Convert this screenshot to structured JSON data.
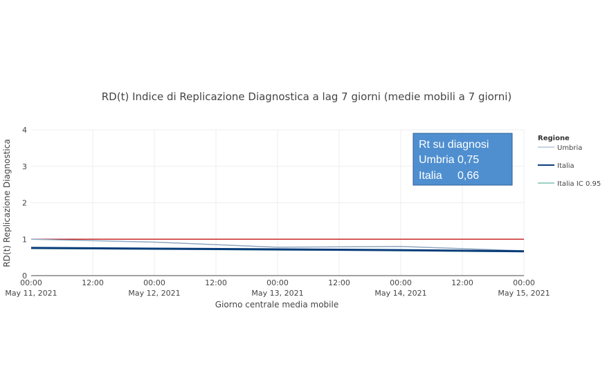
{
  "chart_data": {
    "type": "line",
    "title": "RD(t) Indice di Replicazione Diagnostica a lag 7 giorni (medie mobili a 7 giorni)",
    "xlabel": "Giorno centrale media mobile",
    "ylabel": "RD(t) Replicazione Diagnostica",
    "ylim": [
      0,
      4
    ],
    "yticks": [
      "0",
      "1",
      "2",
      "3",
      "4"
    ],
    "x_range": [
      "2021-05-11T00:00",
      "2021-05-15T00:00"
    ],
    "xticks": [
      {
        "t": "2021-05-11T00:00",
        "line1": "00:00",
        "line2": "May 11, 2021"
      },
      {
        "t": "2021-05-11T12:00",
        "line1": "12:00",
        "line2": ""
      },
      {
        "t": "2021-05-12T00:00",
        "line1": "00:00",
        "line2": "May 12, 2021"
      },
      {
        "t": "2021-05-12T12:00",
        "line1": "12:00",
        "line2": ""
      },
      {
        "t": "2021-05-13T00:00",
        "line1": "00:00",
        "line2": "May 13, 2021"
      },
      {
        "t": "2021-05-13T12:00",
        "line1": "12:00",
        "line2": ""
      },
      {
        "t": "2021-05-14T00:00",
        "line1": "00:00",
        "line2": "May 14, 2021"
      },
      {
        "t": "2021-05-14T12:00",
        "line1": "12:00",
        "line2": ""
      },
      {
        "t": "2021-05-15T00:00",
        "line1": "00:00",
        "line2": "May 15, 2021"
      }
    ],
    "grid": true,
    "legend": {
      "title": "Regione",
      "placement": "right"
    },
    "series": [
      {
        "name": "Umbria",
        "color": "#8fa6c0",
        "x": [
          "2021-05-11T00:00",
          "2021-05-12T00:00",
          "2021-05-13T00:00",
          "2021-05-14T00:00",
          "2021-05-15T00:00"
        ],
        "values": [
          1.0,
          0.92,
          0.78,
          0.8,
          0.68
        ]
      },
      {
        "name": "Italia",
        "color": "#0a3d7a",
        "x": [
          "2021-05-11T00:00",
          "2021-05-12T00:00",
          "2021-05-13T00:00",
          "2021-05-14T00:00",
          "2021-05-15T00:00"
        ],
        "values": [
          0.76,
          0.74,
          0.72,
          0.7,
          0.67
        ]
      },
      {
        "name": "Italia IC 0.95",
        "color": "#7fbfb0",
        "x": [
          "2021-05-11T00:00",
          "2021-05-12T00:00",
          "2021-05-13T00:00",
          "2021-05-14T00:00",
          "2021-05-15T00:00"
        ],
        "values": [
          0.74,
          0.72,
          0.7,
          0.68,
          0.65
        ]
      }
    ],
    "reference_line": {
      "y": 1,
      "color": "#c00000"
    },
    "annotation": {
      "lines": [
        "Rt su diagnosi",
        "Umbria 0,75",
        "Italia     0,66"
      ],
      "background": "#4f8fd0",
      "border": "#2c5f96",
      "placement": "top-right"
    }
  }
}
